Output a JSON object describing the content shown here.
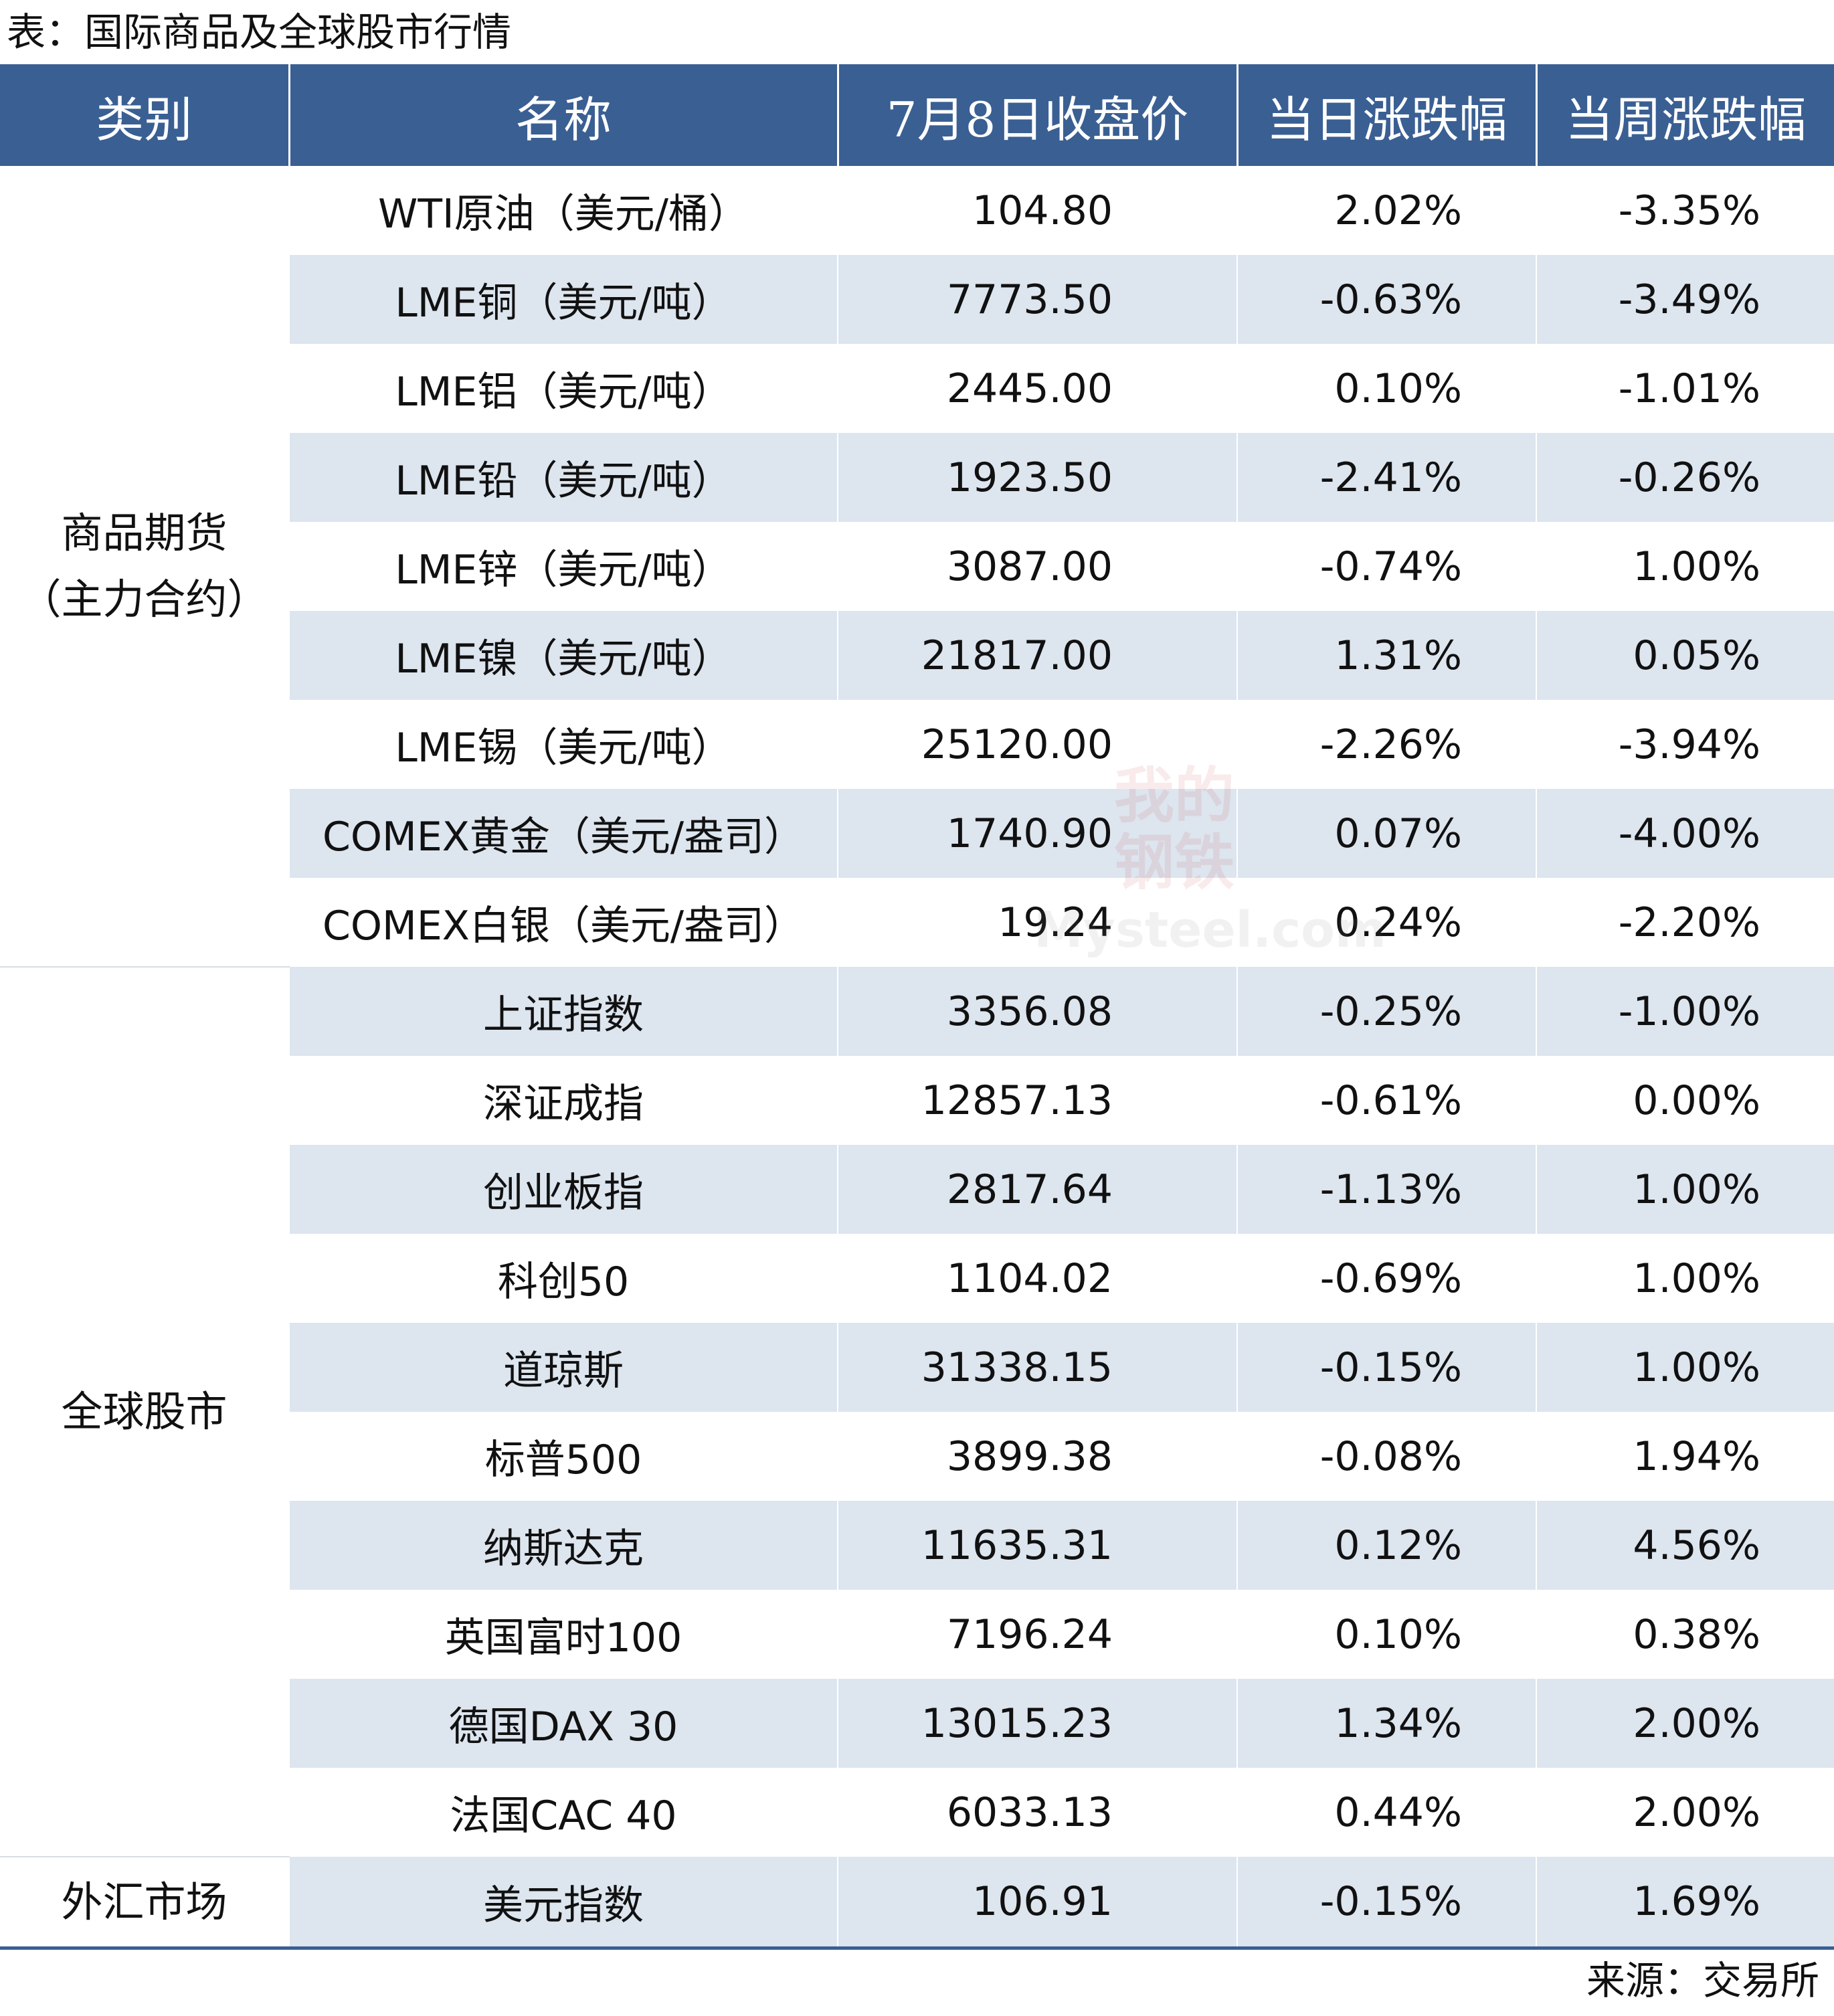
{
  "caption": "表：国际商品及全球股市行情",
  "headers": [
    "类别",
    "名称",
    "7月8日收盘价",
    "当日涨跌幅",
    "当周涨跌幅"
  ],
  "categories": {
    "commodities": [
      "商品期货",
      "（主力合约）"
    ],
    "stocks": "全球股市",
    "fx": "外汇市场"
  },
  "rows": [
    {
      "name": "WTI原油（美元/桶）",
      "price": "104.80",
      "day": "2.02%",
      "week": "-3.35%"
    },
    {
      "name": "LME铜（美元/吨）",
      "price": "7773.50",
      "day": "-0.63%",
      "week": "-3.49%"
    },
    {
      "name": "LME铝（美元/吨）",
      "price": "2445.00",
      "day": "0.10%",
      "week": "-1.01%"
    },
    {
      "name": "LME铅（美元/吨）",
      "price": "1923.50",
      "day": "-2.41%",
      "week": "-0.26%"
    },
    {
      "name": "LME锌（美元/吨）",
      "price": "3087.00",
      "day": "-0.74%",
      "week": "1.00%"
    },
    {
      "name": "LME镍（美元/吨）",
      "price": "21817.00",
      "day": "1.31%",
      "week": "0.05%"
    },
    {
      "name": "LME锡（美元/吨）",
      "price": "25120.00",
      "day": "-2.26%",
      "week": "-3.94%"
    },
    {
      "name": "COMEX黄金（美元/盎司）",
      "price": "1740.90",
      "day": "0.07%",
      "week": "-4.00%"
    },
    {
      "name": "COMEX白银（美元/盎司）",
      "price": "19.24",
      "day": "0.24%",
      "week": "-2.20%"
    },
    {
      "name": "上证指数",
      "price": "3356.08",
      "day": "-0.25%",
      "week": "-1.00%"
    },
    {
      "name": "深证成指",
      "price": "12857.13",
      "day": "-0.61%",
      "week": "0.00%"
    },
    {
      "name": "创业板指",
      "price": "2817.64",
      "day": "-1.13%",
      "week": "1.00%"
    },
    {
      "name": "科创50",
      "price": "1104.02",
      "day": "-0.69%",
      "week": "1.00%"
    },
    {
      "name": "道琼斯",
      "price": "31338.15",
      "day": "-0.15%",
      "week": "1.00%"
    },
    {
      "name": "标普500",
      "price": "3899.38",
      "day": "-0.08%",
      "week": "1.94%"
    },
    {
      "name": "纳斯达克",
      "price": "11635.31",
      "day": "0.12%",
      "week": "4.56%"
    },
    {
      "name": "英国富时100",
      "price": "7196.24",
      "day": "0.10%",
      "week": "0.38%"
    },
    {
      "name": "德国DAX 30",
      "price": "13015.23",
      "day": "1.34%",
      "week": "2.00%"
    },
    {
      "name": "法国CAC 40",
      "price": "6033.13",
      "day": "0.44%",
      "week": "2.00%"
    },
    {
      "name": "美元指数",
      "price": "106.91",
      "day": "-0.15%",
      "week": "1.69%"
    }
  ],
  "watermark": {
    "line1": "我的",
    "line2": "钢铁",
    "line3": "Mysteel.com"
  },
  "source": "来源：交易所",
  "colors": {
    "header_bg": "#3a5f93",
    "stripe": "#dde5ef",
    "up": "#c0151f",
    "down": "#4a8a2a"
  }
}
